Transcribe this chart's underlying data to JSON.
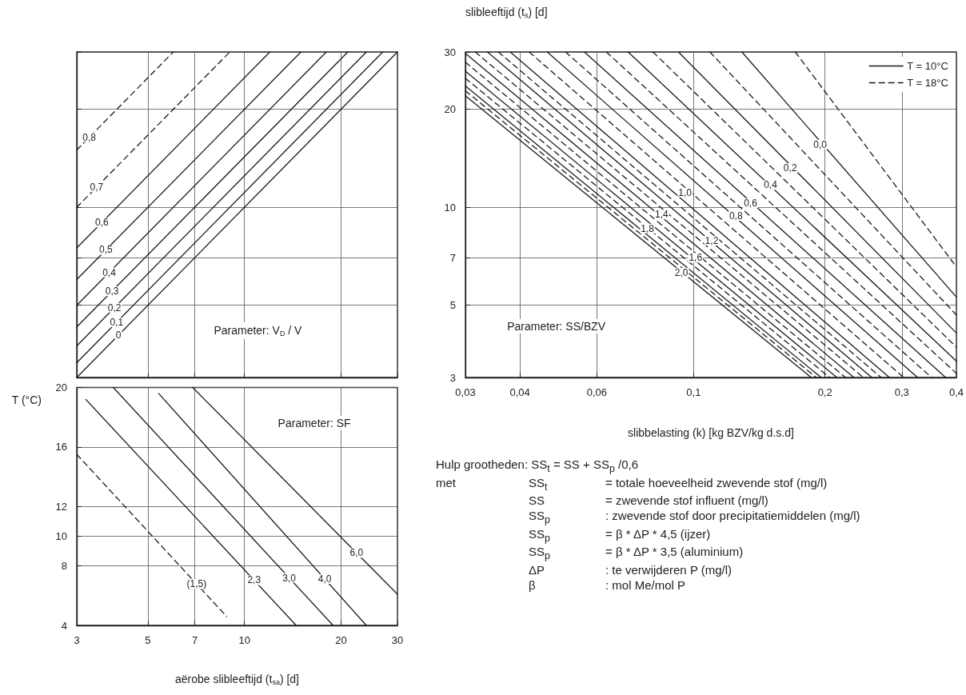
{
  "chart_data": [
    {
      "type": "line",
      "xlim": [
        3,
        30
      ],
      "ylim": [
        3,
        30
      ],
      "xticks": [
        3,
        5,
        7,
        10,
        20,
        30
      ],
      "yticks": [
        3,
        5,
        7,
        10,
        20,
        30
      ],
      "log": "xy",
      "grid": true,
      "tick_labels": false,
      "marker": "none",
      "annotations": [
        "Parameter: V$_{D}$ / V"
      ],
      "series": [
        {
          "name": "0",
          "color": "#1a1a1a",
          "line_style": "solid",
          "x": [
            3,
            30
          ],
          "values": [
            3,
            30
          ]
        },
        {
          "name": "0,1",
          "color": "#1a1a1a",
          "line_style": "solid",
          "x": [
            3,
            27
          ],
          "values": [
            3.33,
            30
          ]
        },
        {
          "name": "0,2",
          "color": "#1a1a1a",
          "line_style": "solid",
          "x": [
            3,
            24
          ],
          "values": [
            3.75,
            30
          ]
        },
        {
          "name": "0,3",
          "color": "#1a1a1a",
          "line_style": "solid",
          "x": [
            3,
            21
          ],
          "values": [
            4.29,
            30
          ]
        },
        {
          "name": "0,4",
          "color": "#1a1a1a",
          "line_style": "solid",
          "x": [
            3,
            18
          ],
          "values": [
            5,
            30
          ]
        },
        {
          "name": "0,5",
          "color": "#1a1a1a",
          "line_style": "solid",
          "x": [
            3,
            15
          ],
          "values": [
            6,
            30
          ]
        },
        {
          "name": "0,6",
          "color": "#1a1a1a",
          "line_style": "solid",
          "x": [
            3,
            12
          ],
          "values": [
            7.5,
            30
          ]
        },
        {
          "name": "0,7",
          "color": "#1a1a1a",
          "line_style": "dashed",
          "x": [
            3,
            9
          ],
          "values": [
            10,
            30
          ]
        },
        {
          "name": "0,8",
          "color": "#1a1a1a",
          "line_style": "dashed",
          "x": [
            3,
            6
          ],
          "values": [
            15,
            30
          ]
        }
      ]
    },
    {
      "type": "line",
      "xlim": [
        0.03,
        0.4
      ],
      "ylim": [
        3,
        30
      ],
      "xticks": [
        {
          "value": 0.03,
          "label": "0,03"
        },
        {
          "value": 0.04,
          "label": "0,04"
        },
        {
          "value": 0.06,
          "label": "0,06"
        },
        {
          "value": 0.1,
          "label": "0,1"
        },
        {
          "value": 0.2,
          "label": "0,2"
        },
        {
          "value": 0.3,
          "label": "0,3"
        },
        {
          "value": 0.4,
          "label": "0,4"
        }
      ],
      "yticks": [
        3,
        5,
        7,
        10,
        20,
        30
      ],
      "log": "xy",
      "grid": true,
      "legend": "top right",
      "marker": "none",
      "xlabel": "slibbelasting (k) [kg BZV/kg d.s.d]",
      "ylabel": "slibleeftijd (t$_{s}$) [d]",
      "annotations": [
        "Parameter: SS/BZV",
        {
          "text": "0,0",
          "x": 0.195,
          "y": 15.6
        },
        {
          "text": "0,2",
          "x": 0.1665,
          "y": 13.2
        },
        {
          "text": "0,4",
          "x": 0.15,
          "y": 11.7
        },
        {
          "text": "0,6",
          "x": 0.135,
          "y": 10.3
        },
        {
          "text": "0,8",
          "x": 0.125,
          "y": 9.4
        },
        {
          "text": "1,0",
          "x": 0.0956,
          "y": 11.1
        },
        {
          "text": "1,2",
          "x": 0.11,
          "y": 7.9
        },
        {
          "text": "1,4",
          "x": 0.0845,
          "y": 9.5
        },
        {
          "text": "1,6",
          "x": 0.101,
          "y": 7.0
        },
        {
          "text": "1,8",
          "x": 0.0784,
          "y": 8.6
        },
        {
          "text": "2,0",
          "x": 0.0938,
          "y": 6.3
        }
      ],
      "series": [
        {
          "name": "T = 10°C",
          "color": "#1a1a1a",
          "line_style": "solid",
          "x": [
            0.129,
            0.4,
            null,
            0.0923,
            0.4,
            null,
            0.0708,
            0.4,
            null,
            0.0562,
            0.378,
            null,
            0.0462,
            0.326,
            null,
            0.038,
            0.281,
            null,
            0.0337,
            0.256,
            null,
            0.03,
            0.233,
            null,
            0.03,
            0.213,
            null,
            0.03,
            0.196,
            null,
            0.03,
            0.186
          ],
          "values": [
            30,
            5.3,
            null,
            30,
            4.11,
            null,
            30,
            3.37,
            null,
            30,
            3,
            null,
            30,
            3,
            null,
            30,
            3,
            null,
            30,
            3,
            null,
            29.7,
            3,
            null,
            26.2,
            3,
            null,
            23.6,
            3,
            null,
            22,
            3
          ]
        },
        {
          "name": "T = 18°C",
          "color": "#1a1a1a",
          "line_style": "dashed",
          "x": [
            0.171,
            0.4,
            null,
            0.109,
            0.4,
            null,
            0.0807,
            0.4,
            null,
            0.0631,
            0.4,
            null,
            0.0509,
            0.351,
            null,
            0.042,
            0.303,
            null,
            0.0357,
            0.269,
            null,
            0.0316,
            0.245,
            null,
            0.03,
            0.223,
            null,
            0.03,
            0.205,
            null,
            0.03,
            0.191
          ],
          "values": [
            30,
            6.56,
            null,
            30,
            4.67,
            null,
            30,
            3.72,
            null,
            30,
            3.09,
            null,
            30,
            3,
            null,
            30,
            3,
            null,
            30,
            3,
            null,
            30,
            3,
            null,
            27.9,
            3,
            null,
            24.9,
            3,
            null,
            22.8,
            3
          ]
        }
      ]
    },
    {
      "type": "line",
      "xlim": [
        3,
        30
      ],
      "ylim": [
        4,
        20
      ],
      "xticks": [
        3,
        5,
        7,
        10,
        20,
        30
      ],
      "yticks": [
        4,
        8,
        10,
        12,
        16,
        20
      ],
      "log": "x",
      "grid": true,
      "marker": "none",
      "xlabel": "aërobe slibleeftijd (t$_{sa}$) [d]",
      "ylabel": "T (°C)",
      "annotations": [
        "Parameter: SF"
      ],
      "series": [
        {
          "name": "(1,5)",
          "color": "#1a1a1a",
          "line_style": "dashed",
          "x": [
            3,
            8.8
          ],
          "values": [
            15.5,
            4.6
          ]
        },
        {
          "name": "2,3",
          "color": "#1a1a1a",
          "line_style": "solid",
          "x": [
            3.2,
            14.5
          ],
          "values": [
            19.2,
            4
          ]
        },
        {
          "name": "3,0",
          "color": "#1a1a1a",
          "line_style": "solid",
          "x": [
            3.9,
            18.9
          ],
          "values": [
            20,
            4
          ]
        },
        {
          "name": "4,0",
          "color": "#1a1a1a",
          "line_style": "solid",
          "x": [
            5.4,
            24
          ],
          "values": [
            19.6,
            4
          ]
        },
        {
          "name": "6,0",
          "color": "#1a1a1a",
          "line_style": "solid",
          "x": [
            6.9,
            30
          ],
          "values": [
            20,
            6.1
          ]
        }
      ]
    },
    {
      "type": "other",
      "annotations": [
        "Hulp grootheden: SS$_{t}$ = SS + SS$_{p}$ /0,6",
        "met\tSS$_{t}$\t= totale hoeveelheid zwevende stof (mg/l)",
        "\tSS\t= zwevende stof influent (mg/l)",
        "\tSS$_{p}$\t: zwevende stof door precipitatiemiddelen (mg/l)",
        "\tSS$_{p}$\t= β * ΔP * 4,5 (ijzer)",
        "\tSS$_{p}$\t= β * ΔP * 3,5 (aluminium)",
        "\tΔP\t: te verwijderen P (mg/l)",
        "\tβ\t: mol Me/mol P"
      ]
    }
  ]
}
